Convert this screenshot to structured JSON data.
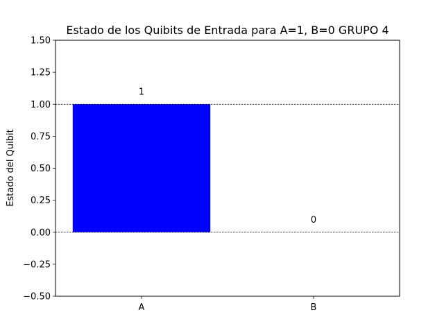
{
  "chart_data": {
    "type": "bar",
    "title": "Estado de los Quibits de Entrada para A=1, B=0 GRUPO 4",
    "xlabel": "",
    "ylabel": "Estado del Quibit",
    "categories": [
      "A",
      "B"
    ],
    "values": [
      1,
      0
    ],
    "data_labels": [
      "1",
      "0"
    ],
    "ylim": [
      -0.5,
      1.5
    ],
    "yticks": [
      -0.5,
      -0.25,
      0.0,
      0.25,
      0.5,
      0.75,
      1.0,
      1.25,
      1.5
    ],
    "ytick_labels": [
      "−0.50",
      "−0.25",
      "0.00",
      "0.25",
      "0.50",
      "0.75",
      "1.00",
      "1.25",
      "1.50"
    ],
    "reference_lines": [
      0,
      1
    ],
    "bar_color": "#0000ff",
    "grid": false,
    "legend": "none"
  }
}
